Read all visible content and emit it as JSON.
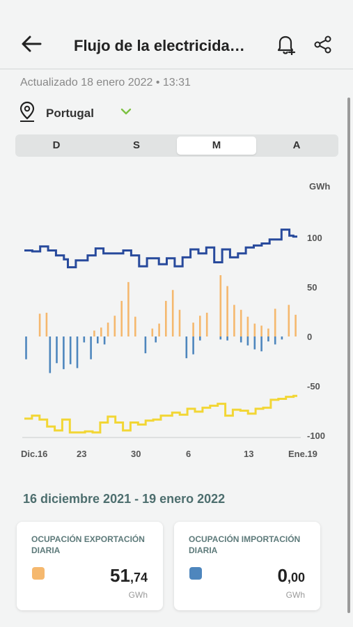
{
  "header": {
    "title": "Flujo de la electricida…",
    "back_icon": "arrow-left-icon",
    "bell_icon": "bell-plus-icon",
    "share_icon": "share-icon"
  },
  "updated": "Actualizado 18 enero 2022  •  13:31",
  "location": {
    "name": "Portugal",
    "pin_icon": "location-pin-icon",
    "chevron_icon": "chevron-down-icon",
    "chevron_color": "#7cc142"
  },
  "segments": [
    {
      "label": "D",
      "active": false
    },
    {
      "label": "S",
      "active": false
    },
    {
      "label": "M",
      "active": true
    },
    {
      "label": "A",
      "active": false
    }
  ],
  "chart_data": {
    "type": "line",
    "unit": "GWh",
    "ylim": [
      -100,
      100
    ],
    "y_ticks": [
      100,
      50,
      0,
      -50,
      -100
    ],
    "x_ticks": [
      "Dic.16",
      "23",
      "30",
      "6",
      "13",
      "Ene.19"
    ],
    "colors": {
      "balance": "#284a9c",
      "export": "#f5b86e",
      "import": "#4e86bd",
      "generation": "#f2d635"
    },
    "series": [
      {
        "key": "balance",
        "values": [
          87,
          87,
          86,
          86,
          91,
          91,
          87,
          87,
          82,
          82,
          78,
          70,
          70,
          77,
          77,
          77,
          82,
          82,
          89,
          89,
          84,
          84,
          84,
          84,
          84,
          87,
          87,
          82,
          82,
          71,
          71,
          79,
          79,
          79,
          73,
          73,
          79,
          79,
          71,
          71,
          80,
          80,
          88,
          88,
          84,
          84,
          90,
          90,
          75,
          75,
          88,
          88,
          80,
          80,
          84,
          84,
          90,
          90,
          92,
          92,
          94,
          94,
          98,
          98,
          98,
          108,
          108,
          102,
          101
        ]
      },
      {
        "key": "export",
        "values": [
          0,
          0,
          0,
          0,
          23,
          0,
          24,
          0,
          0,
          0,
          0,
          0,
          0,
          0,
          0,
          0,
          0,
          0,
          0,
          0,
          6,
          0,
          9,
          0,
          14,
          0,
          21,
          0,
          36,
          0,
          55,
          0,
          20,
          0,
          0,
          0,
          0,
          8,
          0,
          13,
          0,
          36,
          0,
          47,
          0,
          27,
          0,
          0,
          0,
          14,
          0,
          21,
          0,
          24,
          0,
          0,
          0,
          62,
          0,
          51,
          0,
          32,
          0,
          27,
          0,
          20,
          0,
          13,
          0,
          11,
          0,
          8,
          0,
          28,
          0,
          0,
          0,
          32,
          0,
          22
        ]
      },
      {
        "key": "import",
        "values": [
          -23,
          0,
          0,
          0,
          0,
          0,
          0,
          -37,
          0,
          -27,
          0,
          -33,
          0,
          -28,
          0,
          -32,
          0,
          -6,
          0,
          -23,
          0,
          -7,
          0,
          -8,
          0,
          0,
          0,
          0,
          0,
          0,
          0,
          0,
          0,
          0,
          0,
          -17,
          0,
          0,
          -6,
          0,
          0,
          0,
          0,
          0,
          0,
          0,
          0,
          -22,
          0,
          -18,
          0,
          -4,
          0,
          0,
          0,
          0,
          0,
          -3,
          0,
          -4,
          0,
          0,
          0,
          -6,
          0,
          -9,
          0,
          -13,
          0,
          -15,
          0,
          -5,
          0,
          -8,
          0,
          -3,
          0,
          0,
          0,
          0
        ]
      },
      {
        "key": "generation",
        "values": [
          -83,
          -83,
          -80,
          -80,
          -84,
          -84,
          -91,
          -91,
          -95,
          -95,
          -84,
          -84,
          -97,
          -97,
          -97,
          -97,
          -96,
          -96,
          -97,
          -97,
          -87,
          -87,
          -81,
          -81,
          -87,
          -87,
          -95,
          -95,
          -87,
          -87,
          -89,
          -89,
          -85,
          -85,
          -84,
          -84,
          -80,
          -80,
          -80,
          -77,
          -77,
          -79,
          -79,
          -73,
          -73,
          -76,
          -76,
          -72,
          -72,
          -70,
          -70,
          -68,
          -68,
          -80,
          -80,
          -74,
          -74,
          -75,
          -75,
          -78,
          -78,
          -73,
          -73,
          -72,
          -72,
          -64,
          -64,
          -63,
          -63,
          -61,
          -61,
          -60
        ]
      }
    ]
  },
  "period": "16 diciembre 2021 - 19 enero 2022",
  "cards": [
    {
      "label": "Ocupación exportación diaria",
      "int": "51",
      "dec": ",74",
      "unit": "GWh",
      "color": "#f5b86e"
    },
    {
      "label": "Ocupación importación diaria",
      "int": "0",
      "dec": ",00",
      "unit": "GWh",
      "color": "#4e86bd"
    }
  ]
}
